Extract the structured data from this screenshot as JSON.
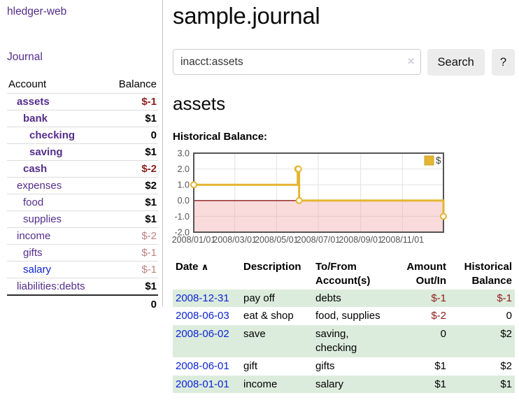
{
  "app": {
    "brand": "hledger-web",
    "nav_journal": "Journal"
  },
  "colors": {
    "accent_purple": "#552d8c",
    "link_blue": "#0b23d6",
    "negative": "#8e1b1b",
    "negative_muted": "#bd8181",
    "row_stripe_green": "#dcecdc",
    "button_bg": "#ececec",
    "chart_line_gold": "#e4b530",
    "chart_legend_border": "#c8a028",
    "chart_negative_fill": "#f0a0a0",
    "chart_zero_line": "#8e1b1b",
    "chart_border": "#545454",
    "chart_grid": "#e2e2e2",
    "chart_tick_text": "#545454"
  },
  "sidebar": {
    "header": {
      "account": "Account",
      "balance": "Balance"
    },
    "accounts": [
      {
        "name": "assets",
        "balance": "$-1",
        "level": 1,
        "bold": true,
        "balance_class": "neg-strong"
      },
      {
        "name": "bank",
        "balance": "$1",
        "level": 2,
        "bold": true,
        "balance_class": ""
      },
      {
        "name": "checking",
        "balance": "0",
        "level": 3,
        "bold": true,
        "balance_class": ""
      },
      {
        "name": "saving",
        "balance": "$1",
        "level": 3,
        "bold": true,
        "balance_class": ""
      },
      {
        "name": "cash",
        "balance": "$-2",
        "level": 2,
        "bold": true,
        "balance_class": "neg-strong"
      },
      {
        "name": "expenses",
        "balance": "$2",
        "level": 1,
        "bold": false,
        "balance_class": ""
      },
      {
        "name": "food",
        "balance": "$1",
        "level": 2,
        "bold": false,
        "balance_class": ""
      },
      {
        "name": "supplies",
        "balance": "$1",
        "level": 2,
        "bold": false,
        "balance_class": ""
      },
      {
        "name": "income",
        "balance": "$-2",
        "level": 1,
        "bold": false,
        "balance_class": "neg-muted"
      },
      {
        "name": "gifts",
        "balance": "$-1",
        "level": 2,
        "bold": false,
        "balance_class": "neg-muted"
      },
      {
        "name": "salary",
        "balance": "$-1",
        "level": 2,
        "bold": false,
        "balance_class": "neg-muted",
        "link_color": "blue"
      },
      {
        "name": "liabilities:debts",
        "balance": "$1",
        "level": 1,
        "bold": false,
        "balance_class": ""
      }
    ],
    "total": "0"
  },
  "main": {
    "title": "sample.journal",
    "search": {
      "value": "inacct:assets",
      "clear_icon": "×",
      "button_label": "Search",
      "help_label": "?"
    },
    "account_heading": "assets"
  },
  "chart_data": {
    "type": "line",
    "title": "Historical Balance:",
    "step": true,
    "series": [
      {
        "name": "$",
        "points": [
          [
            "2008-01-01",
            1
          ],
          [
            "2008-06-01",
            2
          ],
          [
            "2008-06-02",
            2
          ],
          [
            "2008-06-03",
            0
          ],
          [
            "2008-12-31",
            -1
          ]
        ]
      }
    ],
    "x_range": [
      "2008-01-01",
      "2008-12-31"
    ],
    "ylim": [
      -2,
      3
    ],
    "y_ticks": [
      3.0,
      2.0,
      1.0,
      0.0,
      -1.0,
      -2.0
    ],
    "x_ticks": [
      "2008/01/01",
      "2008/03/01",
      "2008/05/01",
      "2008/07/01",
      "2008/09/01",
      "2008/11/01"
    ],
    "legend": {
      "label": "$",
      "position": "top-right"
    },
    "negative_region_shaded": true,
    "grid": true
  },
  "register": {
    "header": {
      "date": "Date",
      "sort_icon": "∧",
      "description": "Description",
      "accounts": "To/From Account(s)",
      "amount": "Amount Out/In",
      "balance": "Historical Balance"
    },
    "rows": [
      {
        "date": "2008-12-31",
        "description": "pay off",
        "accounts": "debts",
        "amount": "$-1",
        "amount_neg": true,
        "balance": "$-1",
        "balance_neg": true
      },
      {
        "date": "2008-06-03",
        "description": "eat & shop",
        "accounts": "food, supplies",
        "amount": "$-2",
        "amount_neg": true,
        "balance": "0",
        "balance_neg": false
      },
      {
        "date": "2008-06-02",
        "description": "save",
        "accounts": "saving, checking",
        "amount": "0",
        "amount_neg": false,
        "balance": "$2",
        "balance_neg": false
      },
      {
        "date": "2008-06-01",
        "description": "gift",
        "accounts": "gifts",
        "amount": "$1",
        "amount_neg": false,
        "balance": "$2",
        "balance_neg": false
      },
      {
        "date": "2008-01-01",
        "description": "income",
        "accounts": "salary",
        "amount": "$1",
        "amount_neg": false,
        "balance": "$1",
        "balance_neg": false
      }
    ]
  }
}
